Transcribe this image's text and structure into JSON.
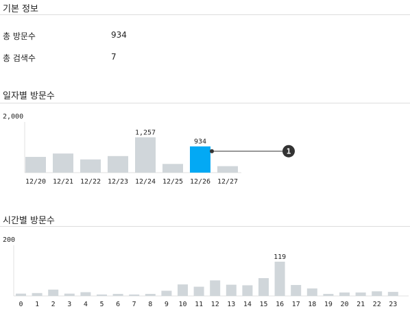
{
  "basic_info": {
    "title": "기본 정보",
    "rows": [
      {
        "label": "총 방문수",
        "value": "934"
      },
      {
        "label": "총 검색수",
        "value": "7"
      }
    ]
  },
  "daily": {
    "title": "일자별 방문수"
  },
  "hourly": {
    "title": "시간별 방문수"
  },
  "colors": {
    "bar": "#d0d6da",
    "highlight": "#03a9f4",
    "callout": "#333333"
  },
  "callout_badge": "1",
  "chart_data": [
    {
      "type": "bar",
      "categories": [
        "12/20",
        "12/21",
        "12/22",
        "12/23",
        "12/24",
        "12/25",
        "12/26",
        "12/27"
      ],
      "values": [
        560,
        680,
        470,
        590,
        1257,
        310,
        934,
        230
      ],
      "ylim": [
        0,
        2000
      ],
      "y_tick_label": "2,000",
      "data_labels": {
        "4": "1,257",
        "6": "934"
      },
      "highlight_index": 6
    },
    {
      "type": "bar",
      "categories": [
        "0",
        "1",
        "2",
        "3",
        "4",
        "5",
        "6",
        "7",
        "8",
        "9",
        "10",
        "11",
        "12",
        "13",
        "14",
        "15",
        "16",
        "17",
        "18",
        "19",
        "20",
        "21",
        "22",
        "23"
      ],
      "values": [
        8,
        10,
        22,
        8,
        13,
        5,
        7,
        5,
        7,
        18,
        40,
        32,
        54,
        39,
        37,
        62,
        119,
        38,
        26,
        7,
        12,
        12,
        16,
        14
      ],
      "ylim": [
        0,
        200
      ],
      "y_tick_label": "200",
      "data_labels": {
        "16": "119"
      }
    }
  ]
}
